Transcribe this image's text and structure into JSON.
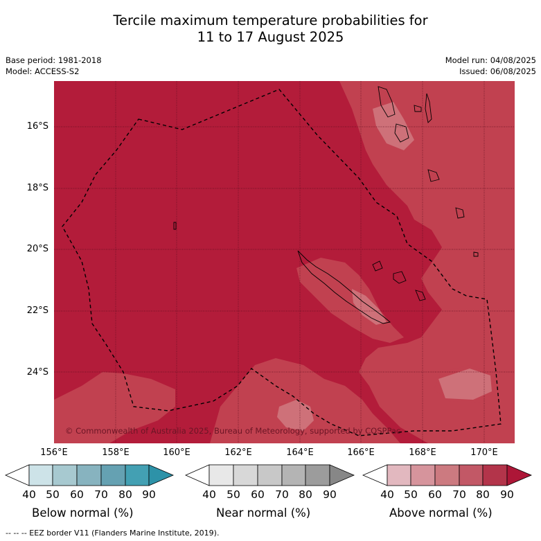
{
  "title_line1": "Tercile maximum temperature probabilities for",
  "title_line2": "11 to 17 August 2025",
  "base_period": "Base period: 1981-2018",
  "model": "Model: ACCESS-S2",
  "model_run": "Model run: 04/08/2025",
  "issued": "Issued: 06/08/2025",
  "copyright": "© Commonwealth of Australia 2025, Bureau of Meteorology, supported by COSPPac",
  "lat_ticks": [
    "16°S",
    "18°S",
    "20°S",
    "22°S",
    "24°S"
  ],
  "lon_ticks": [
    "156°E",
    "158°E",
    "160°E",
    "162°E",
    "164°E",
    "166°E",
    "168°E",
    "170°E"
  ],
  "map": {
    "background_class": "Above normal 80-90%",
    "colors": {
      "above_80_90": "#b31c3a",
      "above_70_80": "#c14150",
      "above_60_70": "#ce7179"
    }
  },
  "colorbars": [
    {
      "label": "Below normal (%)",
      "ticks": [
        "40",
        "50",
        "60",
        "70",
        "80",
        "90"
      ],
      "colors": [
        "#ffffff",
        "#cde3e8",
        "#a7c9d0",
        "#87b3bf",
        "#65a1b2",
        "#43a0b3",
        "#2d92a8"
      ]
    },
    {
      "label": "Near normal (%)",
      "ticks": [
        "40",
        "50",
        "60",
        "70",
        "80",
        "90"
      ],
      "colors": [
        "#ffffff",
        "#e8e8e8",
        "#d8d8d8",
        "#c8c8c8",
        "#b4b4b4",
        "#9c9c9c",
        "#878787"
      ]
    },
    {
      "label": "Above normal (%)",
      "ticks": [
        "40",
        "50",
        "60",
        "70",
        "80",
        "90"
      ],
      "colors": [
        "#ffffff",
        "#e2b8bf",
        "#d6949c",
        "#cc7a80",
        "#c25866",
        "#b3344a",
        "#ad1637"
      ]
    }
  ],
  "eez_note": "-- -- -- EEZ border V11 (Flanders Marine Institute, 2019)."
}
